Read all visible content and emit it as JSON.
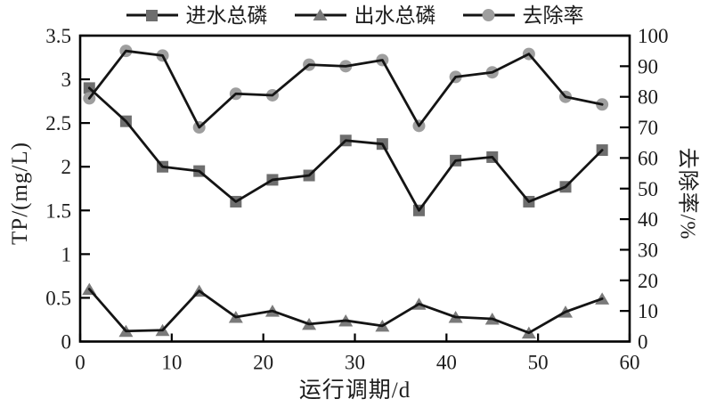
{
  "legend": {
    "items": [
      {
        "label": "进水总磷",
        "marker": "square"
      },
      {
        "label": "出水总磷",
        "marker": "triangle"
      },
      {
        "label": "去除率",
        "marker": "circle"
      }
    ]
  },
  "axes": {
    "left": {
      "label": "TP/(mg/L)",
      "tick_values": [
        0,
        0.5,
        1,
        1.5,
        2,
        2.5,
        3,
        3.5
      ],
      "tick_labels": [
        "0",
        "0.5",
        "1",
        "1.5",
        "2",
        "2.5",
        "3",
        "3.5"
      ]
    },
    "right": {
      "label": "去除率/%",
      "tick_values": [
        0,
        10,
        20,
        30,
        40,
        50,
        60,
        70,
        80,
        90,
        100
      ],
      "tick_labels": [
        "0",
        "10",
        "20",
        "30",
        "40",
        "50",
        "60",
        "70",
        "80",
        "90",
        "100"
      ]
    },
    "bottom": {
      "label": "运行调期/d",
      "tick_values": [
        0,
        10,
        20,
        30,
        40,
        50,
        60
      ],
      "tick_labels": [
        "0",
        "10",
        "20",
        "30",
        "40",
        "50",
        "60"
      ]
    }
  },
  "chart_data": {
    "type": "line",
    "x": [
      1,
      5,
      9,
      13,
      17,
      21,
      25,
      29,
      33,
      37,
      41,
      45,
      49,
      53,
      57
    ],
    "xlim": [
      0,
      60
    ],
    "ylim_left": [
      0,
      3.5
    ],
    "ylim_right": [
      0,
      100
    ],
    "grid": false,
    "legend_position": "top",
    "series": [
      {
        "name": "进水总磷",
        "axis": "left",
        "marker": "square",
        "values": [
          2.9,
          2.52,
          2.0,
          1.95,
          1.6,
          1.85,
          1.9,
          2.3,
          2.26,
          1.5,
          2.07,
          2.11,
          1.6,
          1.77,
          2.19
        ]
      },
      {
        "name": "出水总磷",
        "axis": "left",
        "marker": "triangle",
        "values": [
          0.6,
          0.12,
          0.13,
          0.58,
          0.28,
          0.35,
          0.2,
          0.24,
          0.18,
          0.43,
          0.28,
          0.26,
          0.1,
          0.34,
          0.49
        ]
      },
      {
        "name": "去除率",
        "axis": "right",
        "marker": "circle",
        "values": [
          79.5,
          95,
          93.5,
          70,
          81,
          80.5,
          90.5,
          90,
          92,
          70.5,
          86.5,
          88,
          94,
          80,
          77.5
        ]
      }
    ],
    "colors": {
      "line": "#141414",
      "square": "#6e6e6e",
      "triangle": "#7a7a7a",
      "circle": "#9e9e9e",
      "axis": "#000000",
      "text": "#1c1c1c"
    }
  }
}
